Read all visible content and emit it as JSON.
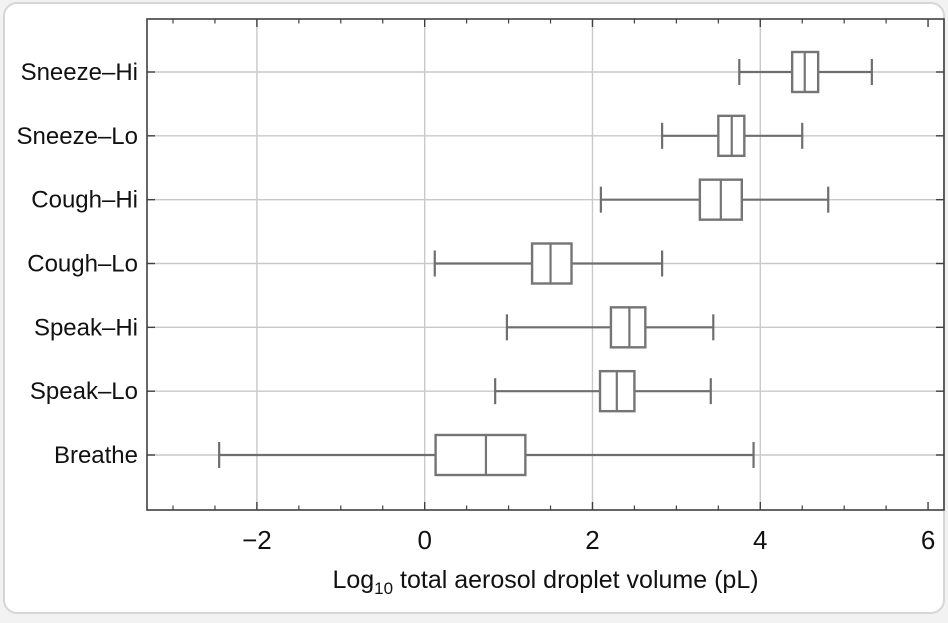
{
  "chart_data": {
    "type": "boxplot",
    "orientation": "horizontal",
    "title": "",
    "xlabel": {
      "prefix": "Log",
      "sub": "10",
      "rest": " total aerosol droplet volume (pL)",
      "full": "Log10 total aerosol droplet volume (pL)"
    },
    "ylabel": "",
    "xlim": [
      -3.31,
      6.19
    ],
    "x_major_ticks": [
      {
        "value": -2,
        "label": "−2"
      },
      {
        "value": 0,
        "label": "0"
      },
      {
        "value": 2,
        "label": "2"
      },
      {
        "value": 4,
        "label": "4"
      },
      {
        "value": 6,
        "label": "6"
      }
    ],
    "x_minor_tick_step": 0.5,
    "grid": {
      "vertical_at": [
        -2,
        0,
        2,
        4
      ],
      "horizontal": "every-category-row"
    },
    "legend": "none",
    "categories": [
      "Sneeze–Hi",
      "Sneeze–Lo",
      "Cough–Hi",
      "Cough–Lo",
      "Speak–Hi",
      "Speak–Lo",
      "Breathe"
    ],
    "series": [
      {
        "name": "Sneeze–Hi",
        "whisker_low": 3.75,
        "q1": 4.38,
        "median": 4.53,
        "q3": 4.69,
        "whisker_high": 5.33
      },
      {
        "name": "Sneeze–Lo",
        "whisker_low": 2.83,
        "q1": 3.5,
        "median": 3.66,
        "q3": 3.81,
        "whisker_high": 4.5
      },
      {
        "name": "Cough–Hi",
        "whisker_low": 2.1,
        "q1": 3.28,
        "median": 3.53,
        "q3": 3.78,
        "whisker_high": 4.81
      },
      {
        "name": "Cough–Lo",
        "whisker_low": 0.12,
        "q1": 1.28,
        "median": 1.5,
        "q3": 1.75,
        "whisker_high": 2.83
      },
      {
        "name": "Speak–Hi",
        "whisker_low": 0.98,
        "q1": 2.22,
        "median": 2.44,
        "q3": 2.63,
        "whisker_high": 3.44
      },
      {
        "name": "Speak–Lo",
        "whisker_low": 0.84,
        "q1": 2.09,
        "median": 2.29,
        "q3": 2.5,
        "whisker_high": 3.41
      },
      {
        "name": "Breathe",
        "whisker_low": -2.45,
        "q1": 0.13,
        "median": 0.73,
        "q3": 1.2,
        "whisker_high": 3.92
      }
    ]
  },
  "colors": {
    "box_stroke": "#757575",
    "whisker_stroke": "#6e6e6e",
    "grid": "#c9c9c9",
    "frame": "#404040",
    "tick": "#404040",
    "text": "#111111",
    "card_border": "#d6d6d6",
    "background": "#ffffff"
  }
}
